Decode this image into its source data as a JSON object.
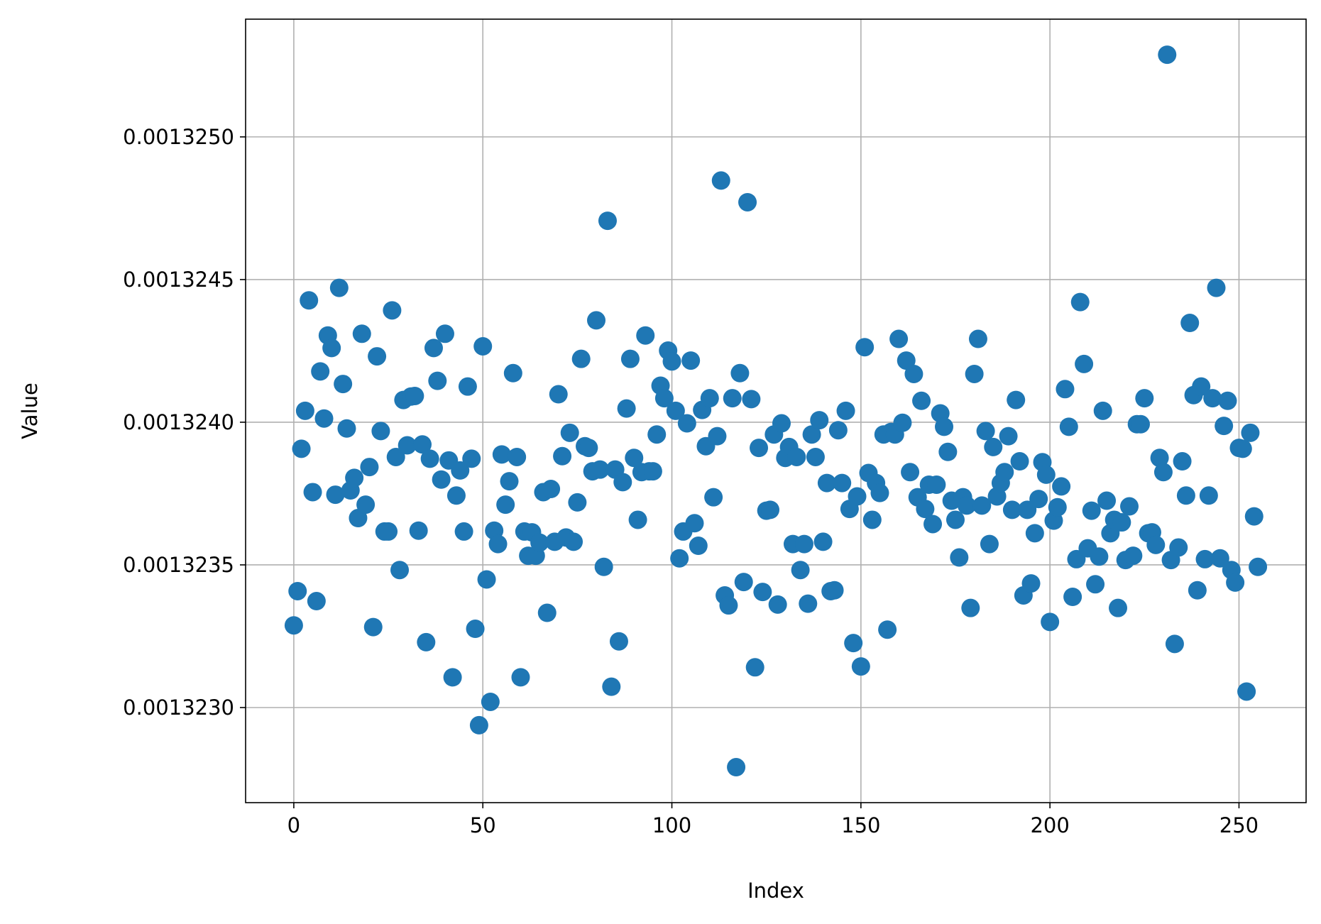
{
  "chart_data": {
    "type": "scatter",
    "x_label": "Index",
    "y_label": "Value",
    "color": "#1f77b4",
    "grid": true,
    "xlim": [
      -12.75,
      267.75
    ],
    "xticks": [
      0,
      50,
      100,
      150,
      200,
      250
    ],
    "ylim": [
      0.0013226667,
      0.0013254126
    ],
    "yticks": [
      {
        "value": 0.001323,
        "label": "0.0013230"
      },
      {
        "value": 0.0013235,
        "label": "0.0013235"
      },
      {
        "value": 0.001324,
        "label": "0.0013240"
      },
      {
        "value": 0.0013245,
        "label": "0.0013245"
      },
      {
        "value": 0.001325,
        "label": "0.0013250"
      }
    ],
    "x": [
      0,
      1,
      2,
      3,
      4,
      5,
      6,
      7,
      8,
      9,
      10,
      11,
      12,
      13,
      14,
      15,
      16,
      17,
      18,
      19,
      20,
      21,
      22,
      23,
      24,
      25,
      26,
      27,
      28,
      29,
      30,
      31,
      32,
      33,
      34,
      35,
      36,
      37,
      38,
      39,
      40,
      41,
      42,
      43,
      44,
      45,
      46,
      47,
      48,
      49,
      50,
      51,
      52,
      53,
      54,
      55,
      56,
      57,
      58,
      59,
      60,
      61,
      62,
      63,
      64,
      65,
      66,
      67,
      68,
      69,
      70,
      71,
      72,
      73,
      74,
      75,
      76,
      77,
      78,
      79,
      80,
      81,
      82,
      83,
      84,
      85,
      86,
      87,
      88,
      89,
      90,
      91,
      92,
      93,
      94,
      95,
      96,
      97,
      98,
      99,
      100,
      101,
      102,
      103,
      104,
      105,
      106,
      107,
      108,
      109,
      110,
      111,
      112,
      113,
      114,
      115,
      116,
      117,
      118,
      119,
      120,
      121,
      122,
      123,
      124,
      125,
      126,
      127,
      128,
      129,
      130,
      131,
      132,
      133,
      134,
      135,
      136,
      137,
      138,
      139,
      140,
      141,
      142,
      143,
      144,
      145,
      146,
      147,
      148,
      149,
      150,
      151,
      152,
      153,
      154,
      155,
      156,
      157,
      158,
      159,
      160,
      161,
      162,
      163,
      164,
      165,
      166,
      167,
      168,
      169,
      170,
      171,
      172,
      173,
      174,
      175,
      176,
      177,
      178,
      179,
      180,
      181,
      182,
      183,
      184,
      185,
      186,
      187,
      188,
      189,
      190,
      191,
      192,
      193,
      194,
      195,
      196,
      197,
      198,
      199,
      200,
      201,
      202,
      203,
      204,
      205,
      206,
      207,
      208,
      209,
      210,
      211,
      212,
      213,
      214,
      215,
      216,
      217,
      218,
      219,
      220,
      221,
      222,
      223,
      224,
      225,
      226,
      227,
      228,
      229,
      230,
      231,
      232,
      233,
      234,
      235,
      236,
      237,
      238,
      239,
      240,
      241,
      242,
      243,
      244,
      245,
      246,
      247,
      248,
      249,
      250,
      251,
      252,
      253,
      254,
      255
    ],
    "values": [
      0.001323288,
      0.001323408,
      0.001323907,
      0.00132404,
      0.001324427,
      0.001323755,
      0.001323373,
      0.001324178,
      0.001324013,
      0.001324304,
      0.00132426,
      0.001323746,
      0.001324471,
      0.001324134,
      0.001323978,
      0.001323761,
      0.001323805,
      0.001323664,
      0.00132431,
      0.001323711,
      0.001323843,
      0.001323282,
      0.001324231,
      0.001323969,
      0.001323617,
      0.001323617,
      0.001324392,
      0.001323878,
      0.001323482,
      0.001324078,
      0.001323919,
      0.00132409,
      0.001324092,
      0.00132362,
      0.001323922,
      0.001323229,
      0.001323872,
      0.00132426,
      0.001324145,
      0.001323799,
      0.00132431,
      0.001323866,
      0.001323106,
      0.001323743,
      0.001323831,
      0.001323617,
      0.001324125,
      0.001323872,
      0.001323276,
      0.001322938,
      0.001324266,
      0.001323449,
      0.00132302,
      0.00132362,
      0.001323573,
      0.001323887,
      0.001323711,
      0.001323793,
      0.001324172,
      0.001323878,
      0.001323106,
      0.001323617,
      0.001323532,
      0.001323614,
      0.001323532,
      0.001323578,
      0.001323755,
      0.001323332,
      0.001323766,
      0.001323581,
      0.001324098,
      0.001323881,
      0.001323596,
      0.001323963,
      0.001323581,
      0.001323719,
      0.001324222,
      0.001323916,
      0.00132391,
      0.001323828,
      0.001324357,
      0.001323834,
      0.001323493,
      0.001324706,
      0.001323073,
      0.001323834,
      0.001323232,
      0.00132379,
      0.001324048,
      0.001324222,
      0.001323875,
      0.001323658,
      0.001323825,
      0.001324304,
      0.001323828,
      0.001323828,
      0.001323957,
      0.001324128,
      0.001324084,
      0.001324251,
      0.001324213,
      0.00132404,
      0.001323523,
      0.001323617,
      0.001323996,
      0.001324216,
      0.001323646,
      0.001323567,
      0.001324043,
      0.001323916,
      0.001324084,
      0.001323737,
      0.001323951,
      0.001324847,
      0.001323393,
      0.001323358,
      0.001324084,
      0.001322791,
      0.001324172,
      0.00132344,
      0.001324771,
      0.001324081,
      0.001323141,
      0.00132391,
      0.001323405,
      0.00132369,
      0.001323693,
      0.001323957,
      0.001323361,
      0.001323996,
      0.001323875,
      0.001323913,
      0.001323573,
      0.001323878,
      0.001323482,
      0.001323573,
      0.001323364,
      0.001323957,
      0.001323878,
      0.001324007,
      0.001323581,
      0.001323787,
      0.001323408,
      0.001323411,
      0.001323972,
      0.001323787,
      0.00132404,
      0.001323696,
      0.001323226,
      0.00132374,
      0.001323144,
      0.001324263,
      0.001323822,
      0.001323658,
      0.001323787,
      0.001323752,
      0.001323957,
      0.001323273,
      0.001323966,
      0.001323957,
      0.001324292,
      0.001323998,
      0.001324216,
      0.001323825,
      0.001324169,
      0.001323737,
      0.001324075,
      0.001323696,
      0.001323781,
      0.001323643,
      0.001323781,
      0.001324031,
      0.001323984,
      0.001323896,
      0.001323725,
      0.001323658,
      0.001323526,
      0.001323737,
      0.001323708,
      0.001323349,
      0.001324169,
      0.001324292,
      0.001323708,
      0.001323969,
      0.001323573,
      0.001323913,
      0.00132374,
      0.001323787,
      0.001323825,
      0.001323951,
      0.001323693,
      0.001324078,
      0.001323863,
      0.001323393,
      0.001323693,
      0.001323435,
      0.001323611,
      0.001323731,
      0.00132386,
      0.001323816,
      0.0013233,
      0.001323655,
      0.001323702,
      0.001323775,
      0.001324116,
      0.001323984,
      0.001323388,
      0.00132352,
      0.001324421,
      0.001324204,
      0.001323558,
      0.00132369,
      0.001323432,
      0.001323529,
      0.00132404,
      0.001323725,
      0.001323611,
      0.001323658,
      0.001323349,
      0.001323649,
      0.001323517,
      0.001323705,
      0.001323532,
      0.001323993,
      0.001323993,
      0.001324084,
      0.001323611,
      0.001323614,
      0.00132357,
      0.001323875,
      0.001323825,
      0.001325288,
      0.001323517,
      0.001323223,
      0.001323561,
      0.001323863,
      0.001323743,
      0.001324348,
      0.001324095,
      0.001323411,
      0.001324125,
      0.00132352,
      0.001323743,
      0.001324084,
      0.001324471,
      0.001323523,
      0.001323987,
      0.001324075,
      0.001323482,
      0.001323438,
      0.00132391,
      0.001323907,
      0.001323056,
      0.001323963,
      0.00132367,
      0.001323493
    ]
  }
}
